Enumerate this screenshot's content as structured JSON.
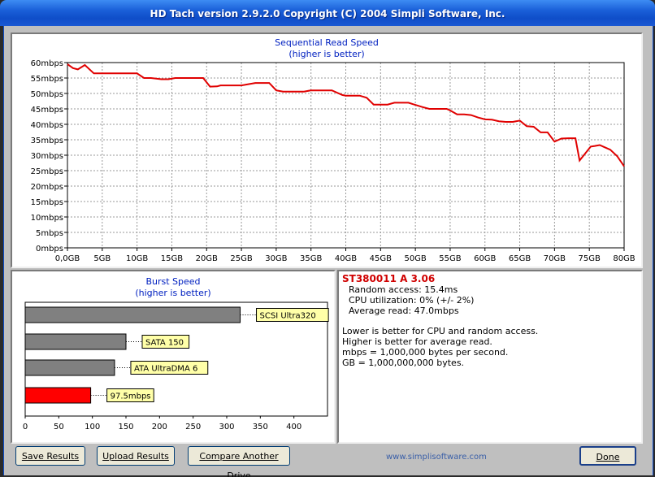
{
  "window": {
    "title": "HD Tach version 2.9.2.0 Copyright (C) 2004 Simpli Software, Inc."
  },
  "read_chart": {
    "title": "Sequential Read Speed",
    "subtitle": "(higher is better)"
  },
  "burst_chart": {
    "title": "Burst Speed",
    "subtitle": "(higher is better)"
  },
  "chart_data": [
    {
      "type": "line",
      "title": "Sequential Read Speed",
      "subtitle": "(higher is better)",
      "xlabel": "",
      "ylabel": "",
      "grid": true,
      "x_ticks": [
        "0,0GB",
        "5GB",
        "10GB",
        "15GB",
        "20GB",
        "25GB",
        "30GB",
        "35GB",
        "40GB",
        "45GB",
        "50GB",
        "55GB",
        "60GB",
        "65GB",
        "70GB",
        "75GB",
        "80GB"
      ],
      "y_ticks": [
        "0mbps",
        "5mbps",
        "10mbps",
        "15mbps",
        "20mbps",
        "25mbps",
        "30mbps",
        "35mbps",
        "40mbps",
        "45mbps",
        "50mbps",
        "55mbps",
        "60mbps"
      ],
      "xlim": [
        0,
        80
      ],
      "ylim": [
        0,
        60
      ],
      "color": "#e00000",
      "series": [
        {
          "x": [
            0,
            0.8,
            1.5,
            2.5,
            3.8,
            5,
            10,
            11,
            12,
            13.5,
            14.5,
            15.5,
            16,
            17,
            18,
            19.5,
            20.5,
            21.5,
            22,
            23,
            24,
            25,
            26,
            27,
            28,
            29,
            30,
            31,
            32,
            33,
            34,
            35,
            36,
            37,
            38,
            39.5,
            40,
            41,
            42,
            43,
            44,
            45,
            46,
            47,
            48,
            49,
            50,
            51,
            52,
            53,
            54.5,
            55,
            56,
            57,
            58,
            59,
            60,
            61,
            62,
            63,
            64,
            65,
            66,
            67,
            68,
            69,
            70,
            71,
            72,
            73,
            73.6,
            75.2,
            75.8,
            76.5,
            77,
            78,
            79,
            80
          ],
          "y": [
            59.5,
            58.2,
            57.8,
            59.2,
            56.5,
            56.5,
            56.5,
            55,
            55,
            54.6,
            54.6,
            55,
            55,
            55,
            55,
            55,
            52.2,
            52.3,
            52.6,
            52.6,
            52.6,
            52.6,
            53,
            53.4,
            53.4,
            53.4,
            51,
            50.6,
            50.6,
            50.6,
            50.6,
            51,
            51,
            51,
            51,
            49.5,
            49.3,
            49.3,
            49.3,
            48.6,
            46.4,
            46.4,
            46.4,
            47,
            47,
            47,
            46.3,
            45.6,
            45,
            45,
            45,
            44.5,
            43.2,
            43.2,
            43,
            42.2,
            41.6,
            41.5,
            41,
            40.8,
            40.8,
            41.2,
            39.4,
            39.2,
            37.4,
            37.4,
            34.4,
            35.4,
            35.5,
            35.5,
            28.3,
            32.8,
            33,
            33.3,
            32.8,
            31.8,
            29.7,
            26.4
          ]
        }
      ]
    },
    {
      "type": "bar",
      "orientation": "horizontal",
      "title": "Burst Speed",
      "subtitle": "(higher is better)",
      "categories": [
        "SCSI Ultra320",
        "SATA 150",
        "ATA UltraDMA 6",
        "97.5mbps"
      ],
      "values": [
        320,
        150,
        133,
        97.5
      ],
      "colors": [
        "#808080",
        "#808080",
        "#808080",
        "#ff0000"
      ],
      "xlim": [
        0,
        450
      ],
      "x_ticks": [
        "0",
        "50",
        "100",
        "150",
        "200",
        "250",
        "300",
        "350",
        "400"
      ]
    }
  ],
  "info": {
    "drive_name": "ST380011 A 3.06",
    "random_access": "Random access: 15.4ms",
    "cpu_util": "CPU utilization: 0% (+/- 2%)",
    "avg_read": "Average read: 47.0mbps",
    "note1": "Lower is better for CPU and random access.",
    "note2": "Higher is better for average read.",
    "note3": "mbps = 1,000,000 bytes per second.",
    "note4": "GB = 1,000,000,000 bytes."
  },
  "buttons": {
    "save": "Save Results",
    "upload": "Upload Results",
    "compare": "Compare Another Drive",
    "done": "Done"
  },
  "footer": {
    "website": "www.simplisoftware.com"
  }
}
